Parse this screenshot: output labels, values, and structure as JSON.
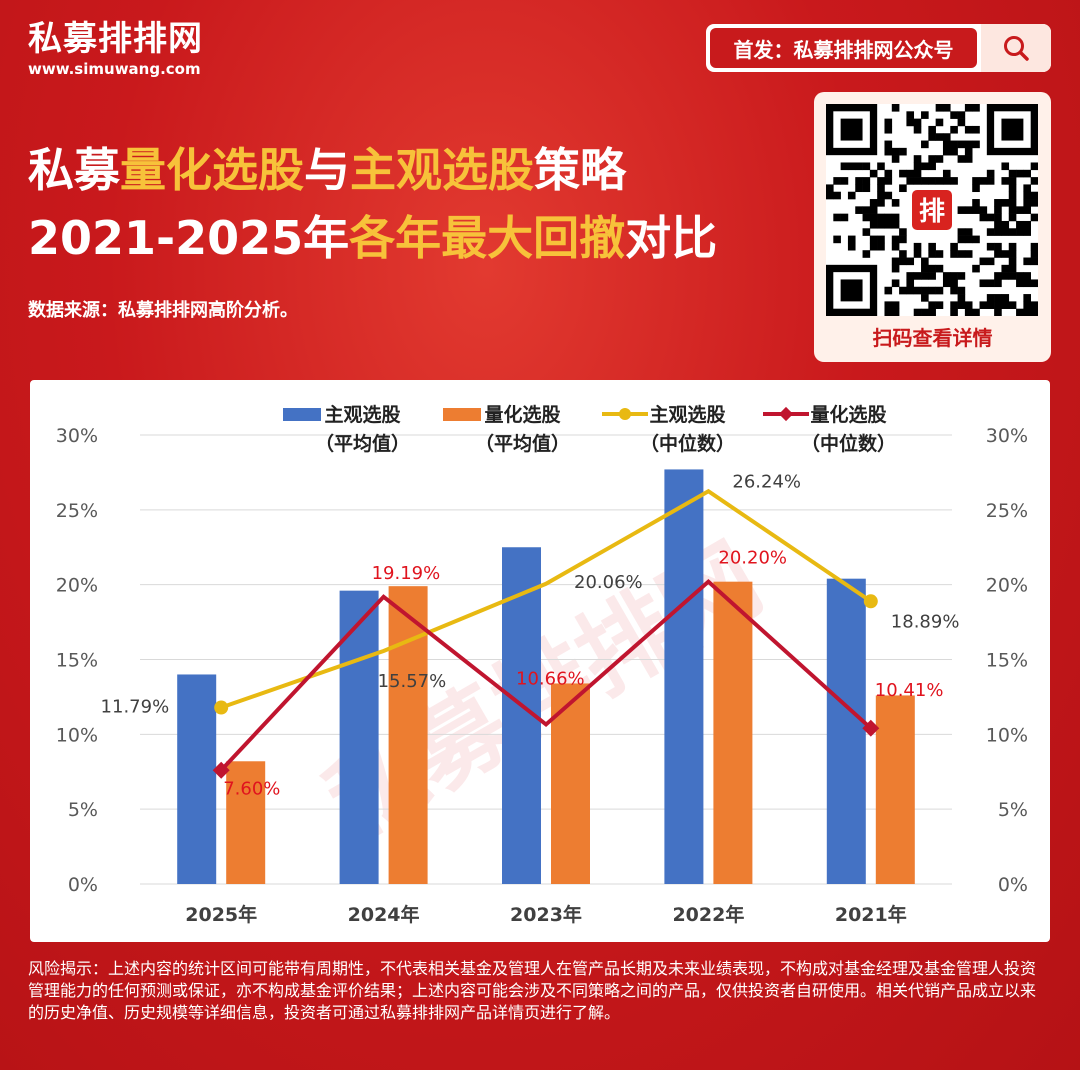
{
  "brand": {
    "name": "私募排排网",
    "url": "www.simuwang.com"
  },
  "topbar": {
    "label": "首发：私募排排网公众号",
    "icon": "search-icon"
  },
  "title": {
    "line1": [
      {
        "text": "私募",
        "color": "white"
      },
      {
        "text": "量化选股",
        "color": "yellow"
      },
      {
        "text": "与",
        "color": "white"
      },
      {
        "text": "主观选股",
        "color": "yellow"
      },
      {
        "text": "策略",
        "color": "white"
      }
    ],
    "line2": [
      {
        "text": "2021-2025年",
        "color": "white"
      },
      {
        "text": "各年最大回撤",
        "color": "yellow"
      },
      {
        "text": "对比",
        "color": "white"
      }
    ]
  },
  "source": "数据来源：私募排排网高阶分析。",
  "qr": {
    "center_char": "排",
    "caption": "扫码查看详情"
  },
  "colors": {
    "blue": "#4472c4",
    "orange": "#ed7d31",
    "gold": "#e8b912",
    "crimson": "#c0152f",
    "brand_red": "#c81a1c",
    "yellow_text": "#f7c23a"
  },
  "chart_data": {
    "type": "bar",
    "categories": [
      "2025年",
      "2024年",
      "2023年",
      "2022年",
      "2021年"
    ],
    "series": [
      {
        "name": "主观选股（平均值）",
        "kind": "bar",
        "color": "#4472c4",
        "values": [
          14.0,
          19.6,
          22.5,
          27.7,
          20.4
        ]
      },
      {
        "name": "量化选股（平均值）",
        "kind": "bar",
        "color": "#ed7d31",
        "values": [
          8.2,
          19.9,
          13.4,
          20.2,
          12.6
        ]
      },
      {
        "name": "主观选股（中位数）",
        "kind": "line",
        "marker": "circle",
        "color": "#e8b912",
        "values": [
          11.79,
          15.57,
          20.06,
          26.24,
          18.89
        ],
        "labels": [
          "11.79%",
          "15.57%",
          "20.06%",
          "26.24%",
          "18.89%"
        ]
      },
      {
        "name": "量化选股（中位数）",
        "kind": "line",
        "marker": "diamond",
        "color": "#c0152f",
        "values": [
          7.6,
          19.19,
          10.66,
          20.2,
          10.41
        ],
        "labels": [
          "7.60%",
          "19.19%",
          "10.66%",
          "20.20%",
          "10.41%"
        ]
      }
    ],
    "legend": [
      {
        "line1": "主观选股",
        "line2": "（平均值）"
      },
      {
        "line1": "量化选股",
        "line2": "（平均值）"
      },
      {
        "line1": "主观选股",
        "line2": "（中位数）"
      },
      {
        "line1": "量化选股",
        "line2": "（中位数）"
      }
    ],
    "yticks": [
      "0%",
      "5%",
      "10%",
      "15%",
      "20%",
      "25%",
      "30%"
    ],
    "ylim": [
      0,
      30
    ],
    "watermark": "私募排排网",
    "grid": true,
    "legend_position": "top"
  },
  "disclaimer": "风险揭示：上述内容的统计区间可能带有周期性，不代表相关基金及管理人在管产品长期及未来业绩表现，不构成对基金经理及基金管理人投资管理能力的任何预测或保证，亦不构成基金评价结果；上述内容可能会涉及不同策略之间的产品，仅供投资者自研使用。相关代销产品成立以来的历史净值、历史规模等详细信息，投资者可通过私募排排网产品详情页进行了解。"
}
